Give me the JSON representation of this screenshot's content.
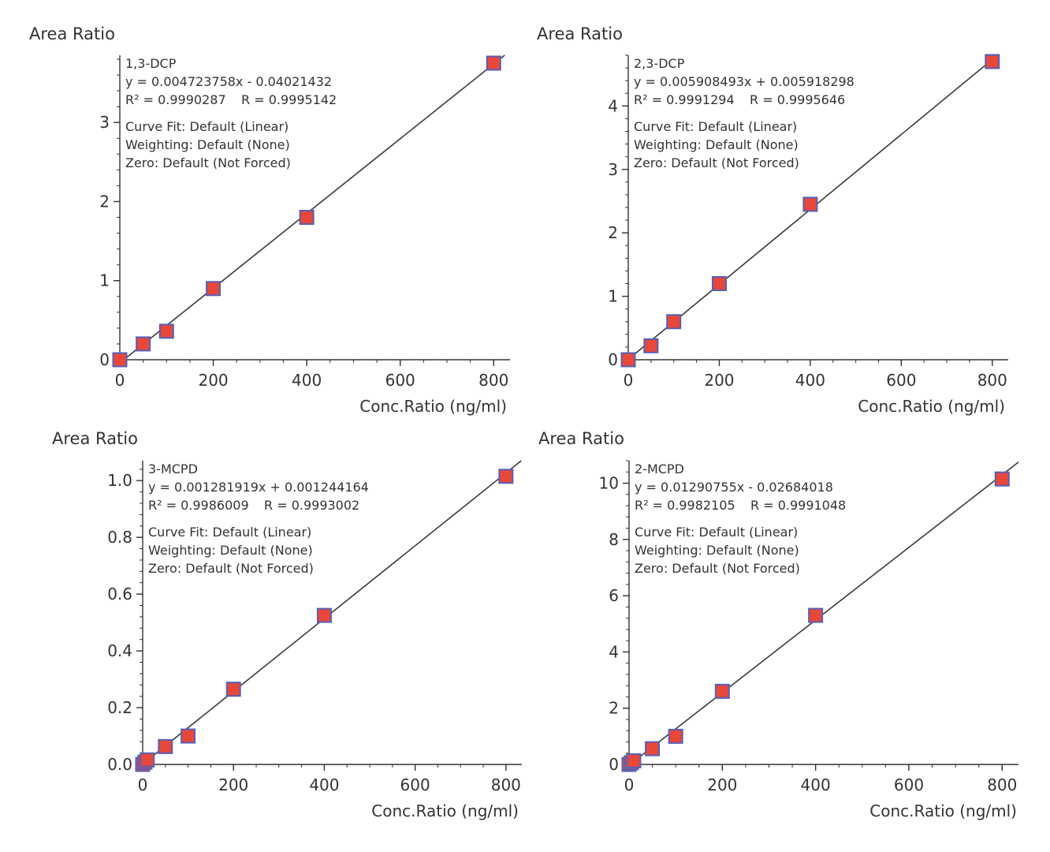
{
  "colors": {
    "marker_fill": "#e8483a",
    "marker_edge": "#5560b8",
    "fit_line": "#3a3a3a",
    "axis": "#333333",
    "text": "#333333"
  },
  "chart_data": [
    {
      "type": "scatter",
      "compound": "1,3-DCP",
      "equation": "y = 0.004723758x - 0.04021432",
      "r2_text": "R² = 0.9990287",
      "r_text": "R = 0.9995142",
      "curve_fit": "Curve Fit: Default (Linear)",
      "weighting": "Weighting: Default (None)",
      "zero": "Zero: Default (Not Forced)",
      "ylabel": "Area Ratio",
      "xlabel": "Conc.Ratio (ng/ml)",
      "xlim": [
        0,
        835
      ],
      "ylim": [
        0,
        3.85
      ],
      "xticks": [
        0,
        200,
        400,
        600,
        800
      ],
      "yticks": [
        0,
        1,
        2,
        3
      ],
      "ytick_labels": [
        "0",
        "1",
        "2",
        "3"
      ],
      "slope": 0.004723758,
      "intercept": -0.04021432,
      "x": [
        0,
        50,
        100,
        200,
        400,
        800
      ],
      "y": [
        0.0,
        0.2,
        0.36,
        0.9,
        1.8,
        3.75
      ]
    },
    {
      "type": "scatter",
      "compound": "2,3-DCP",
      "equation": "y = 0.005908493x + 0.005918298",
      "r2_text": "R² = 0.9991294",
      "r_text": "R = 0.9995646",
      "curve_fit": "Curve Fit: Default (Linear)",
      "weighting": "Weighting: Default (None)",
      "zero": "Zero: Default (Not Forced)",
      "ylabel": "Area Ratio",
      "xlabel": "Conc.Ratio (ng/ml)",
      "xlim": [
        0,
        835
      ],
      "ylim": [
        0,
        4.8
      ],
      "xticks": [
        0,
        200,
        400,
        600,
        800
      ],
      "yticks": [
        0,
        1,
        2,
        3,
        4
      ],
      "ytick_labels": [
        "0",
        "1",
        "2",
        "3",
        "4"
      ],
      "slope": 0.005908493,
      "intercept": 0.005918298,
      "x": [
        0,
        50,
        100,
        200,
        400,
        800
      ],
      "y": [
        0.0,
        0.22,
        0.6,
        1.2,
        2.45,
        4.7
      ]
    },
    {
      "type": "scatter",
      "compound": "3-MCPD",
      "equation": "y = 0.001281919x + 0.001244164",
      "r2_text": "R² = 0.9986009",
      "r_text": "R = 0.9993002",
      "curve_fit": "Curve Fit: Default (Linear)",
      "weighting": "Weighting: Default (None)",
      "zero": "Zero: Default (Not Forced)",
      "ylabel": "Area Ratio",
      "xlabel": "Conc.Ratio (ng/ml)",
      "xlim": [
        0,
        835
      ],
      "ylim": [
        0,
        1.07
      ],
      "xticks": [
        0,
        200,
        400,
        600,
        800
      ],
      "yticks": [
        0,
        0.2,
        0.4,
        0.6,
        0.8,
        1.0
      ],
      "ytick_labels": [
        "0.0",
        "0.2",
        "0.4",
        "0.6",
        "0.8",
        "1.0"
      ],
      "slope": 0.001281919,
      "intercept": 0.001244164,
      "x": [
        0,
        5,
        10,
        50,
        100,
        200,
        400,
        800
      ],
      "y": [
        0.0,
        0.008,
        0.016,
        0.063,
        0.1,
        0.265,
        0.525,
        1.015
      ]
    },
    {
      "type": "scatter",
      "compound": "2-MCPD",
      "equation": "y = 0.01290755x - 0.02684018",
      "r2_text": "R² = 0.9982105",
      "r_text": "R = 0.9991048",
      "curve_fit": "Curve Fit: Default (Linear)",
      "weighting": "Weighting: Default (None)",
      "zero": "Zero: Default (Not Forced)",
      "ylabel": "Area Ratio",
      "xlabel": "Conc.Ratio (ng/ml)",
      "xlim": [
        0,
        835
      ],
      "ylim": [
        0,
        10.8
      ],
      "xticks": [
        0,
        200,
        400,
        600,
        800
      ],
      "yticks": [
        0,
        2,
        4,
        6,
        8,
        10
      ],
      "ytick_labels": [
        "0",
        "2",
        "4",
        "6",
        "8",
        "10"
      ],
      "slope": 0.01290755,
      "intercept": -0.02684018,
      "x": [
        0,
        5,
        10,
        50,
        100,
        200,
        400,
        800
      ],
      "y": [
        0.0,
        0.06,
        0.13,
        0.56,
        1.0,
        2.6,
        5.3,
        10.15
      ]
    }
  ]
}
